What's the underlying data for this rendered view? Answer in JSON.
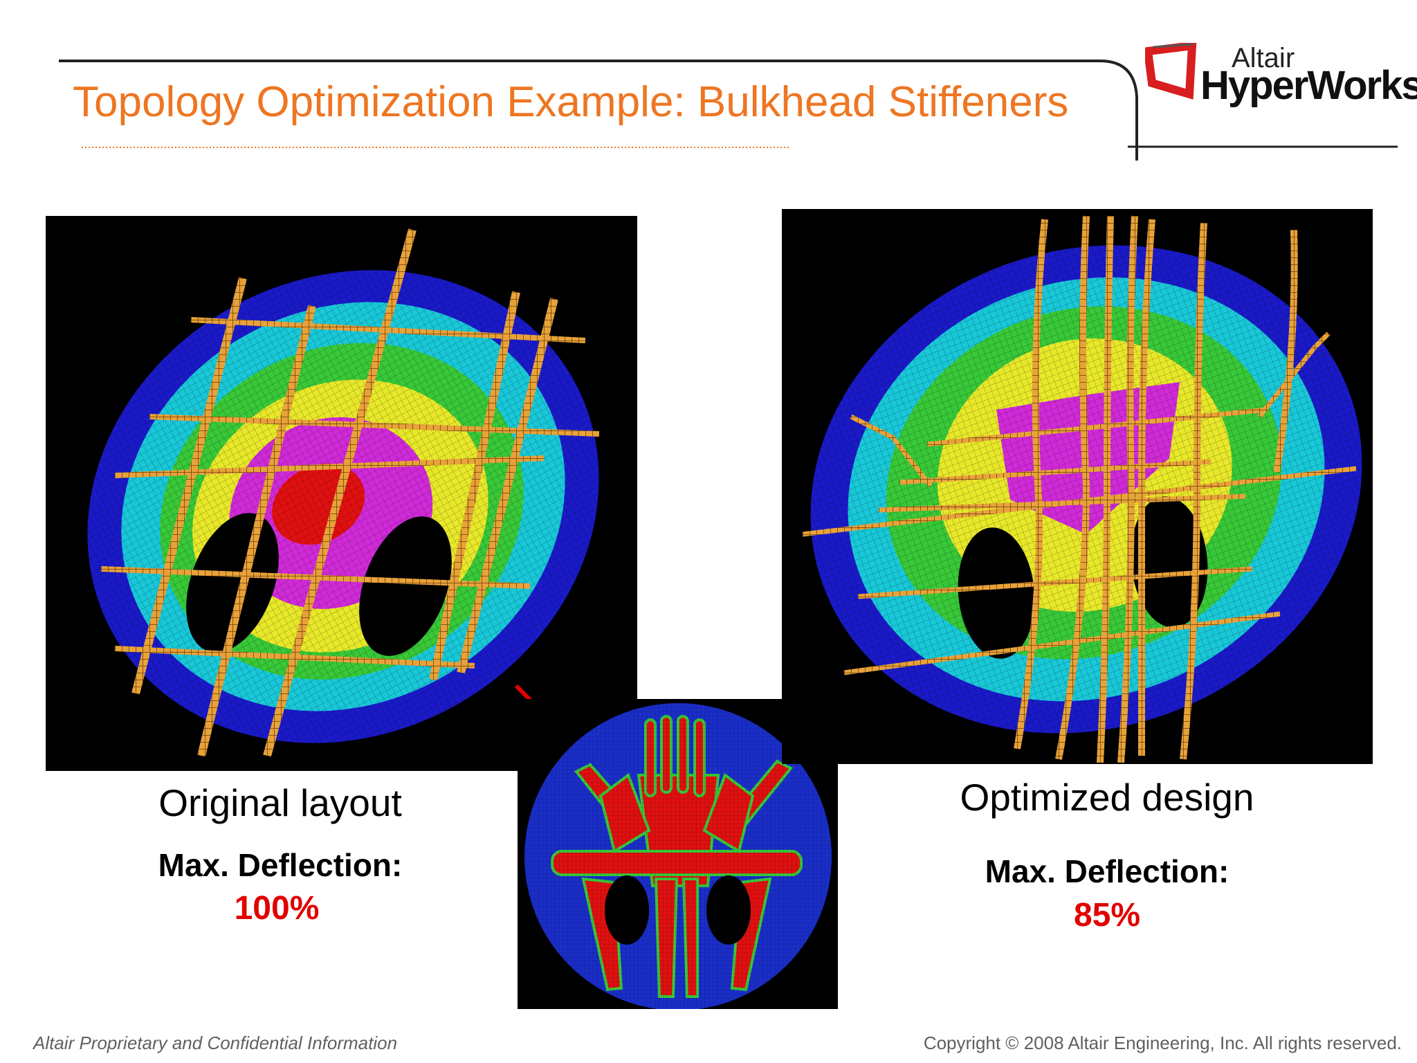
{
  "header": {
    "title": "Topology Optimization Example: Bulkhead Stiffeners",
    "logo": {
      "line1": "Altair",
      "line2": "HyperWorks"
    }
  },
  "left_panel": {
    "caption": "Original layout",
    "metric_label": "Max. Deflection:",
    "metric_value": "100%"
  },
  "right_panel": {
    "caption": "Optimized design",
    "metric_label": "Max. Deflection:",
    "metric_value": "85%"
  },
  "footer": {
    "left": "Altair Proprietary and Confidential Information",
    "right": "Copyright © 2008 Altair Engineering, Inc. All rights reserved."
  },
  "colors": {
    "title": "#ee7622",
    "accent_red": "#e00000",
    "logo_red": "#d81e1e",
    "stiffener": "#e8a23a",
    "contour_outer": "#1a1ac8",
    "contour_2": "#19c8d8",
    "contour_3": "#38c838",
    "contour_4": "#e8e82a",
    "contour_5": "#d02ad8",
    "contour_peak": "#e01010"
  },
  "icons": [
    "altair-logo-icon",
    "arrow-right-icon"
  ]
}
